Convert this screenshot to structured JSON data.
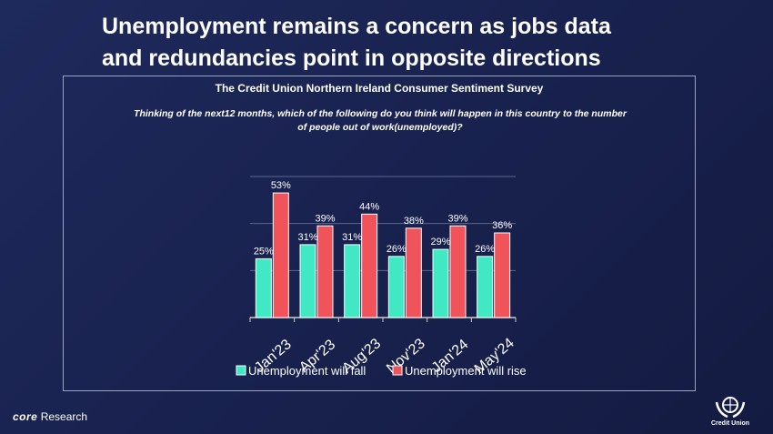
{
  "slide": {
    "title_line1": "Unemployment remains a concern as jobs data",
    "title_line2": "and redundancies point in opposite directions"
  },
  "panel": {
    "survey_name": "The Credit Union Northern Ireland Consumer Sentiment Survey",
    "question_line1": "Thinking of the next12 months, which of the following do you think will happen in this country to the number",
    "question_line2": "of people out of work(unemployed)?"
  },
  "footer": {
    "brand_bold": "core",
    "brand_rest": " Research",
    "logo_text": "Credit Union"
  },
  "chart_data": {
    "type": "bar",
    "categories": [
      "Jan'23",
      "Apr'23",
      "Aug'23",
      "Nov'23",
      "Jan'24",
      "May'24"
    ],
    "series": [
      {
        "name": "Unemployment will fall",
        "values": [
          25,
          31,
          31,
          26,
          29,
          26
        ],
        "color": "#40e8c4"
      },
      {
        "name": "Unemployment will rise",
        "values": [
          53,
          39,
          44,
          38,
          39,
          36
        ],
        "color": "#f0535a"
      }
    ],
    "value_suffix": "%",
    "ylim": [
      0,
      60
    ],
    "gridlines": [
      20,
      40,
      60
    ],
    "legend_position": "bottom",
    "axis_color": "#cccccc"
  }
}
